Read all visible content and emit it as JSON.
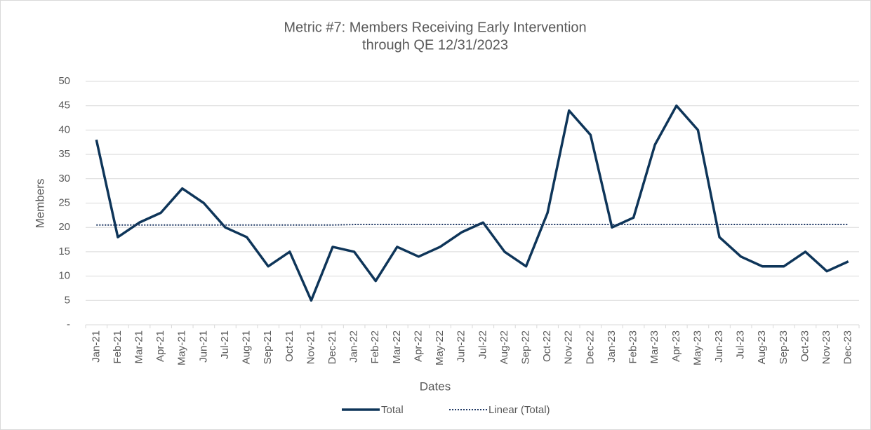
{
  "chart_data": {
    "type": "line",
    "title": "Metric #7: Members Receiving Early Intervention",
    "subtitle": "through QE 12/31/2023",
    "x_label": "Dates",
    "y_label": "Members",
    "categories": [
      "Jan-21",
      "Feb-21",
      "Mar-21",
      "Apr-21",
      "May-21",
      "Jun-21",
      "Jul-21",
      "Aug-21",
      "Sep-21",
      "Oct-21",
      "Nov-21",
      "Dec-21",
      "Jan-22",
      "Feb-22",
      "Mar-22",
      "Apr-22",
      "May-22",
      "Jun-22",
      "Jul-22",
      "Aug-22",
      "Sep-22",
      "Oct-22",
      "Nov-22",
      "Dec-22",
      "Jan-23",
      "Feb-23",
      "Mar-23",
      "Apr-23",
      "May-23",
      "Jun-23",
      "Jul-23",
      "Aug-23",
      "Sep-23",
      "Oct-23",
      "Nov-23",
      "Dec-23"
    ],
    "series": [
      {
        "name": "Total",
        "color": "#0e3559",
        "style": "solid",
        "values": [
          38,
          18,
          21,
          23,
          28,
          25,
          20,
          18,
          12,
          15,
          5,
          16,
          15,
          9,
          16,
          14,
          16,
          19,
          21,
          15,
          12,
          23,
          44,
          39,
          20,
          22,
          37,
          45,
          40,
          18,
          14,
          12,
          12,
          15,
          11,
          13
        ]
      },
      {
        "name": "Linear (Total)",
        "color": "#1f3864",
        "style": "dotted",
        "values": [
          20.5,
          20.5,
          20.5,
          20.5,
          20.5,
          20.5,
          20.5,
          20.5,
          20.5,
          20.5,
          20.5,
          20.5,
          20.6,
          20.6,
          20.6,
          20.6,
          20.6,
          20.6,
          20.6,
          20.6,
          20.6,
          20.6,
          20.6,
          20.6,
          20.6,
          20.6,
          20.6,
          20.6,
          20.6,
          20.6,
          20.6,
          20.6,
          20.6,
          20.6,
          20.6,
          20.6
        ]
      }
    ],
    "ylim": [
      0,
      50
    ],
    "yticks": [
      {
        "value": 0,
        "label": "-"
      },
      5,
      10,
      15,
      20,
      25,
      30,
      35,
      40,
      45,
      50
    ],
    "grid": true,
    "legend": "bottom"
  }
}
